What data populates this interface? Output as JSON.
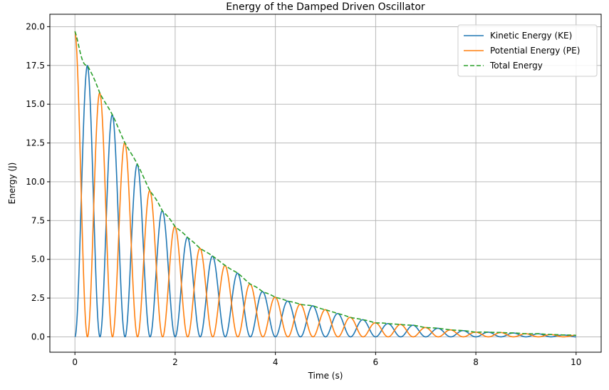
{
  "chart_data": {
    "type": "line",
    "title": "Energy of the Damped Driven Oscillator",
    "xlabel": "Time (s)",
    "ylabel": "Energy (J)",
    "xlim": [
      -0.5,
      10.5
    ],
    "ylim": [
      -0.99,
      20.8
    ],
    "x_ticks": [
      0,
      2,
      4,
      6,
      8,
      10
    ],
    "x_tick_labels": [
      "0",
      "2",
      "4",
      "6",
      "8",
      "10"
    ],
    "y_ticks": [
      0,
      2.5,
      5,
      7.5,
      10,
      12.5,
      15,
      17.5,
      20
    ],
    "y_tick_labels": [
      "0.0",
      "2.5",
      "5.0",
      "7.5",
      "10.0",
      "12.5",
      "15.0",
      "17.5",
      "20.0"
    ],
    "grid": true,
    "legend_position": "top-right",
    "x_range": [
      0,
      10
    ],
    "oscillation_frequency_hz": 1.0,
    "series": [
      {
        "name": "Kinetic Energy (KE)",
        "color": "#1f77b4",
        "style": "solid",
        "peaks": [
          [
            0.25,
            17.5
          ],
          [
            0.75,
            14.3
          ],
          [
            1.25,
            11.1
          ],
          [
            1.75,
            8.1
          ],
          [
            2.25,
            6.4
          ],
          [
            2.75,
            5.2
          ],
          [
            3.25,
            4.1
          ],
          [
            3.75,
            2.9
          ],
          [
            4.25,
            2.3
          ],
          [
            4.75,
            2.0
          ],
          [
            5.25,
            1.5
          ],
          [
            5.75,
            1.1
          ],
          [
            6.25,
            0.85
          ],
          [
            6.75,
            0.75
          ],
          [
            7.25,
            0.55
          ],
          [
            7.75,
            0.4
          ],
          [
            8.25,
            0.3
          ],
          [
            8.75,
            0.25
          ],
          [
            9.25,
            0.2
          ],
          [
            9.75,
            0.12
          ]
        ]
      },
      {
        "name": "Potential Energy (PE)",
        "color": "#ff7f0e",
        "style": "solid",
        "peaks": [
          [
            0.0,
            19.7
          ],
          [
            0.5,
            15.7
          ],
          [
            1.0,
            12.5
          ],
          [
            1.5,
            9.4
          ],
          [
            2.0,
            7.1
          ],
          [
            2.5,
            5.7
          ],
          [
            3.0,
            4.6
          ],
          [
            3.5,
            3.4
          ],
          [
            4.0,
            2.55
          ],
          [
            4.5,
            2.1
          ],
          [
            5.0,
            1.75
          ],
          [
            5.5,
            1.25
          ],
          [
            6.0,
            0.9
          ],
          [
            6.5,
            0.8
          ],
          [
            7.0,
            0.6
          ],
          [
            7.5,
            0.45
          ],
          [
            8.0,
            0.3
          ],
          [
            8.5,
            0.28
          ],
          [
            9.0,
            0.2
          ],
          [
            9.5,
            0.15
          ],
          [
            10.0,
            0.1
          ]
        ]
      },
      {
        "name": "Total Energy",
        "color": "#2ca02c",
        "style": "dashed"
      }
    ]
  }
}
